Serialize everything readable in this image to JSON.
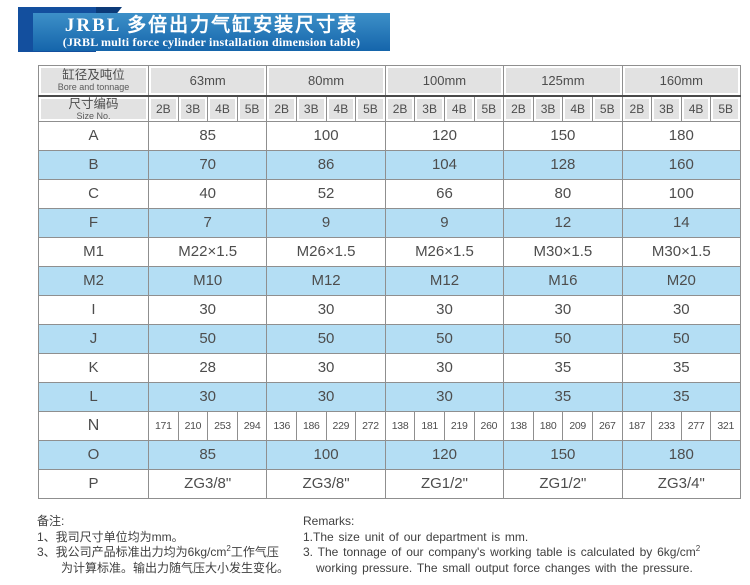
{
  "title": {
    "line1": "JRBL 多倍出力气缸安装尺寸表",
    "line2": "(JRBL multi force cylinder installation dimension table)"
  },
  "table": {
    "header": {
      "bore_label_zh": "缸径及吨位",
      "bore_label_en": "Bore and tonnage",
      "size_label_zh": "尺寸编码",
      "size_label_en": "Size No.",
      "bores": [
        "63mm",
        "80mm",
        "100mm",
        "125mm",
        "160mm"
      ],
      "size_codes": [
        "2B",
        "3B",
        "4B",
        "5B"
      ]
    },
    "rows": [
      {
        "label": "A",
        "type": "span",
        "shaded": false,
        "values": [
          "85",
          "100",
          "120",
          "150",
          "180"
        ]
      },
      {
        "label": "B",
        "type": "span",
        "shaded": true,
        "values": [
          "70",
          "86",
          "104",
          "128",
          "160"
        ]
      },
      {
        "label": "C",
        "type": "span",
        "shaded": false,
        "values": [
          "40",
          "52",
          "66",
          "80",
          "100"
        ]
      },
      {
        "label": "F",
        "type": "span",
        "shaded": true,
        "values": [
          "7",
          "9",
          "9",
          "12",
          "14"
        ]
      },
      {
        "label": "M1",
        "type": "span",
        "shaded": false,
        "values": [
          "M22×1.5",
          "M26×1.5",
          "M26×1.5",
          "M30×1.5",
          "M30×1.5"
        ]
      },
      {
        "label": "M2",
        "type": "span",
        "shaded": true,
        "values": [
          "M10",
          "M12",
          "M12",
          "M16",
          "M20"
        ]
      },
      {
        "label": "I",
        "type": "span",
        "shaded": false,
        "values": [
          "30",
          "30",
          "30",
          "30",
          "30"
        ]
      },
      {
        "label": "J",
        "type": "span",
        "shaded": true,
        "values": [
          "50",
          "50",
          "50",
          "50",
          "50"
        ]
      },
      {
        "label": "K",
        "type": "span",
        "shaded": false,
        "values": [
          "28",
          "30",
          "30",
          "35",
          "35"
        ]
      },
      {
        "label": "L",
        "type": "span",
        "shaded": true,
        "values": [
          "30",
          "30",
          "30",
          "35",
          "35"
        ]
      },
      {
        "label": "N",
        "type": "each",
        "shaded": false,
        "values": [
          "171",
          "210",
          "253",
          "294",
          "136",
          "186",
          "229",
          "272",
          "138",
          "181",
          "219",
          "260",
          "138",
          "180",
          "209",
          "267",
          "187",
          "233",
          "277",
          "321"
        ]
      },
      {
        "label": "O",
        "type": "span",
        "shaded": true,
        "values": [
          "85",
          "100",
          "120",
          "150",
          "180"
        ]
      },
      {
        "label": "P",
        "type": "span",
        "shaded": false,
        "values": [
          "ZG3/8\"",
          "ZG3/8\"",
          "ZG1/2\"",
          "ZG1/2\"",
          "ZG3/4\""
        ]
      }
    ]
  },
  "notes_zh": {
    "heading": "备注:",
    "line1": "1、我司尺寸单位均为mm。",
    "line2_pre": "3、我公司产品标准出力均为6kg/cm",
    "line2_sup": "2",
    "line2_post": "工作气压",
    "line3": "为计算标准。输出力随气压大小发生变化。"
  },
  "notes_en": {
    "heading": "Remarks:",
    "line1": "1.The size unit of our department is mm.",
    "line2_pre": "3. The tonnage of our company's working table is calculated by 6kg/cm",
    "line2_sup": "2",
    "line3": "working pressure. The small output force changes with the pressure."
  },
  "colors": {
    "banner_top": "#3d90c8",
    "banner_bottom": "#1565ab",
    "ribbon_dark": "#134f9e",
    "fold_navy": "#0c3a78",
    "header_gray": "#e2e2e2",
    "row_blue": "#b4def4",
    "border": "#8f8f8f",
    "text": "#4d4d4d"
  }
}
